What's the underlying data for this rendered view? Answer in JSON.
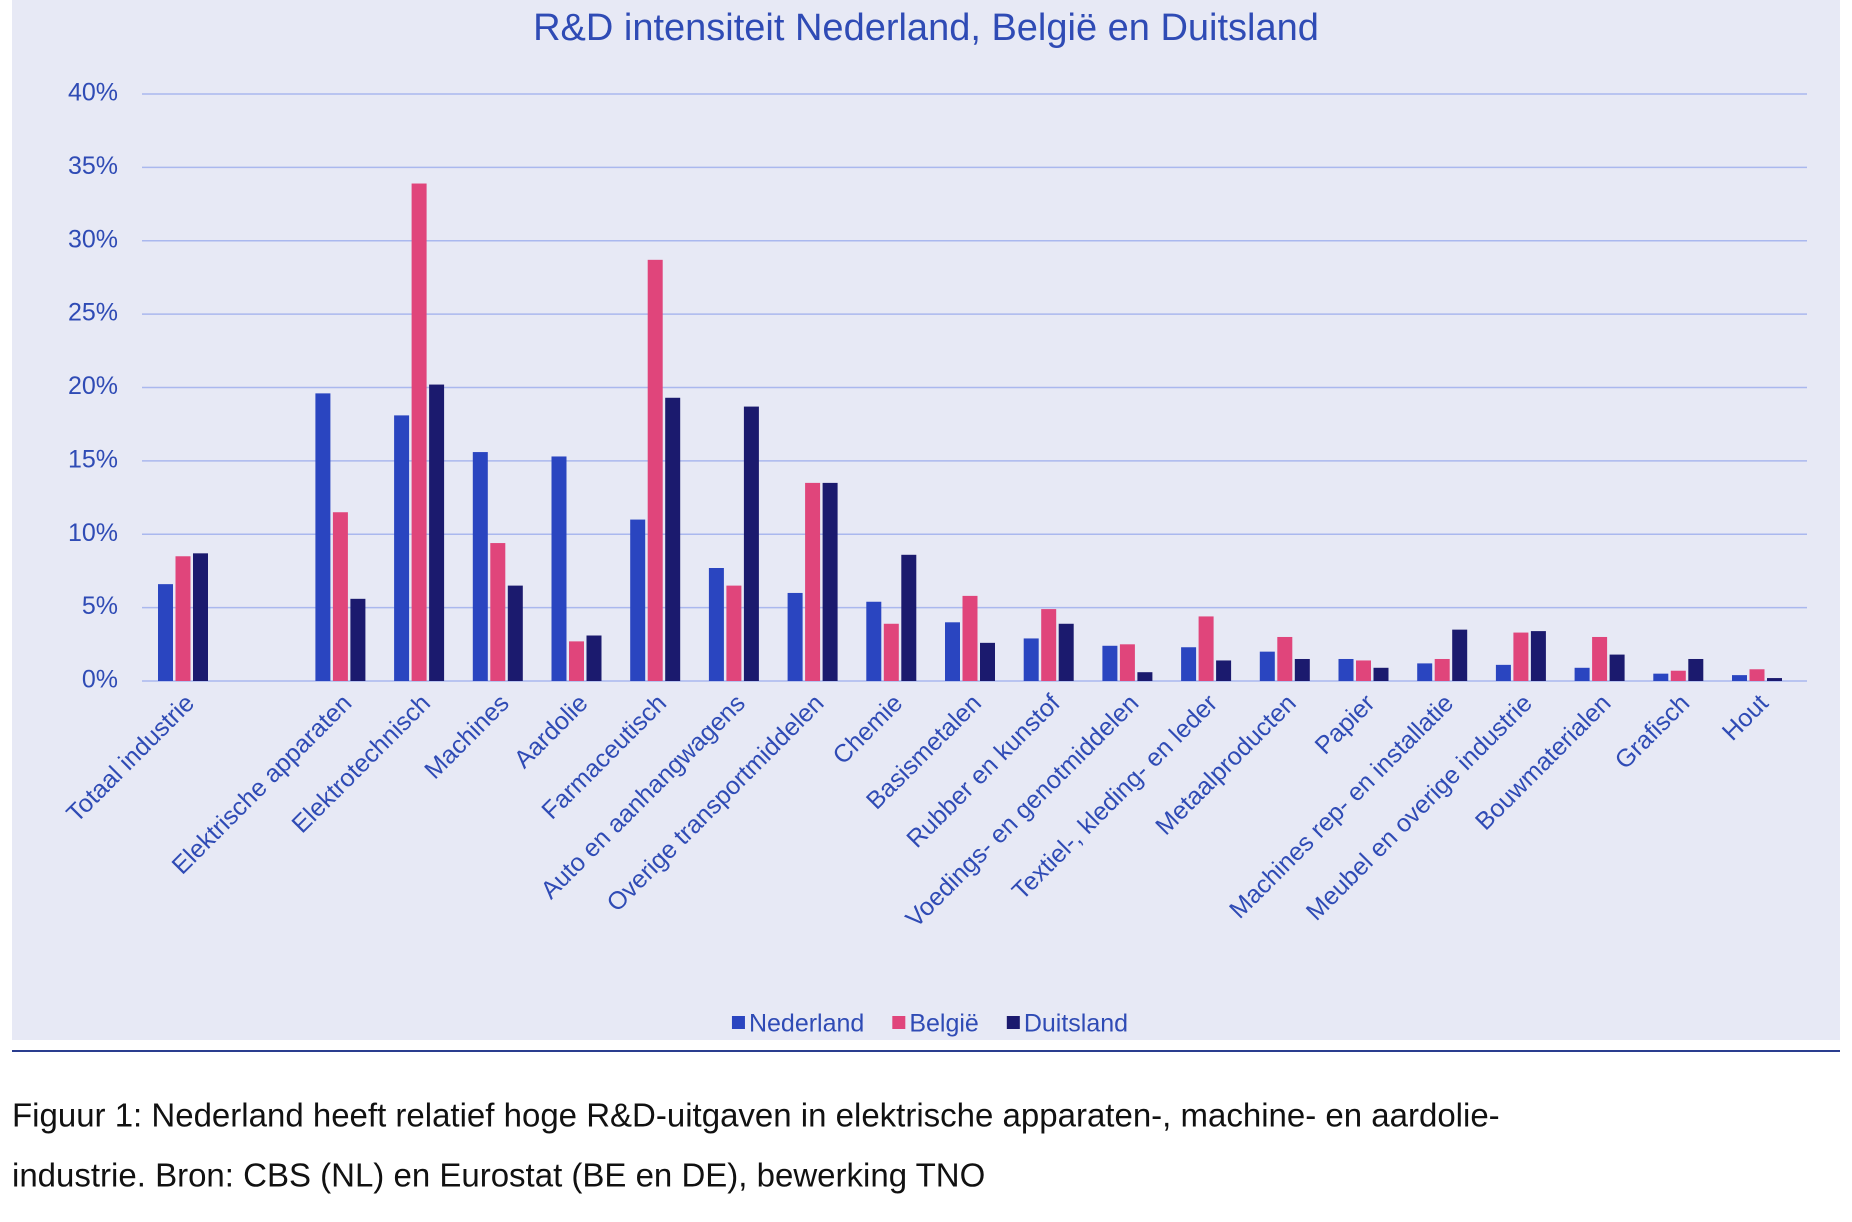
{
  "chart_data": {
    "type": "bar",
    "title": "R&D intensiteit Nederland, België en Duitsland",
    "categories": [
      "Totaal industrie",
      null,
      "Elektrische apparaten",
      "Elektrotechnisch",
      "Machines",
      "Aardolie",
      "Farmaceutisch",
      "Auto en aanhangwagens",
      "Overige transportmiddelen",
      "Chemie",
      "Basismetalen",
      "Rubber en kunstof",
      "Voedings- en genotmiddelen",
      "Textiel-, kleding- en leder",
      "Metaalproducten",
      "Papier",
      "Machines rep- en installatie",
      "Meubel en overige industrie",
      "Bouwmaterialen",
      "Grafisch",
      "Hout"
    ],
    "series": [
      {
        "name": "Nederland",
        "color": "#2a45c0",
        "values": [
          6.6,
          null,
          19.6,
          18.1,
          15.6,
          15.3,
          11.0,
          7.7,
          6.0,
          5.4,
          4.0,
          2.9,
          2.4,
          2.3,
          2.0,
          1.5,
          1.2,
          1.1,
          0.9,
          0.5,
          0.4
        ]
      },
      {
        "name": "België",
        "color": "#e0457b",
        "values": [
          8.5,
          null,
          11.5,
          33.9,
          9.4,
          2.7,
          28.7,
          6.5,
          13.5,
          3.9,
          5.8,
          4.9,
          2.5,
          4.4,
          3.0,
          1.4,
          1.5,
          3.3,
          3.0,
          0.7,
          0.8
        ]
      },
      {
        "name": "Duitsland",
        "color": "#1b1a6e",
        "values": [
          8.7,
          null,
          5.6,
          20.2,
          6.5,
          3.1,
          19.3,
          18.7,
          13.5,
          8.6,
          2.6,
          3.9,
          0.6,
          1.4,
          1.5,
          0.9,
          3.5,
          3.4,
          1.8,
          1.5,
          0.2
        ]
      }
    ],
    "ylim": [
      0,
      40
    ],
    "yticks": [
      {
        "value": 0,
        "label": "0%"
      },
      {
        "value": 5,
        "label": "5%"
      },
      {
        "value": 10,
        "label": "10%"
      },
      {
        "value": 15,
        "label": "15%"
      },
      {
        "value": 20,
        "label": "20%"
      },
      {
        "value": 25,
        "label": "25%"
      },
      {
        "value": 30,
        "label": "30%"
      },
      {
        "value": 35,
        "label": "35%"
      },
      {
        "value": 40,
        "label": "40%"
      }
    ],
    "grid": true,
    "legend": "bottom",
    "caption_lines": [
      "Figuur 1: Nederland heeft relatief hoge R&D-uitgaven in elektrische apparaten-, machine- en aardolie-",
      "industrie. Bron: CBS (NL) en Eurostat (BE en DE), bewerking TNO"
    ]
  }
}
